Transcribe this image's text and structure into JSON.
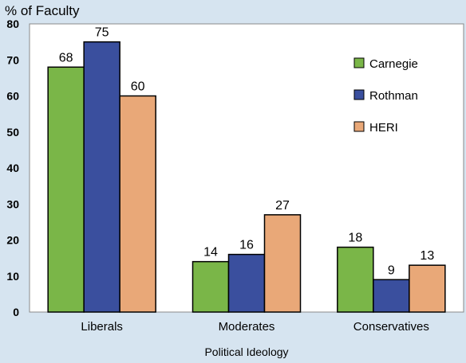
{
  "chart_data": {
    "type": "bar",
    "ylabel": "% of Faculty",
    "xlabel": "Political Ideology",
    "categories": [
      "Liberals",
      "Moderates",
      "Conservatives"
    ],
    "series": [
      {
        "name": "Carnegie",
        "color": "#7ab648",
        "values": [
          68,
          14,
          18
        ]
      },
      {
        "name": "Rothman",
        "color": "#3a4f9e",
        "values": [
          75,
          16,
          9
        ]
      },
      {
        "name": "HERI",
        "color": "#e9a878",
        "values": [
          60,
          27,
          13
        ]
      }
    ],
    "ylim": [
      0,
      80
    ],
    "yticks": [
      0,
      10,
      20,
      30,
      40,
      50,
      60,
      70,
      80
    ],
    "legend": "right",
    "grid": false
  }
}
